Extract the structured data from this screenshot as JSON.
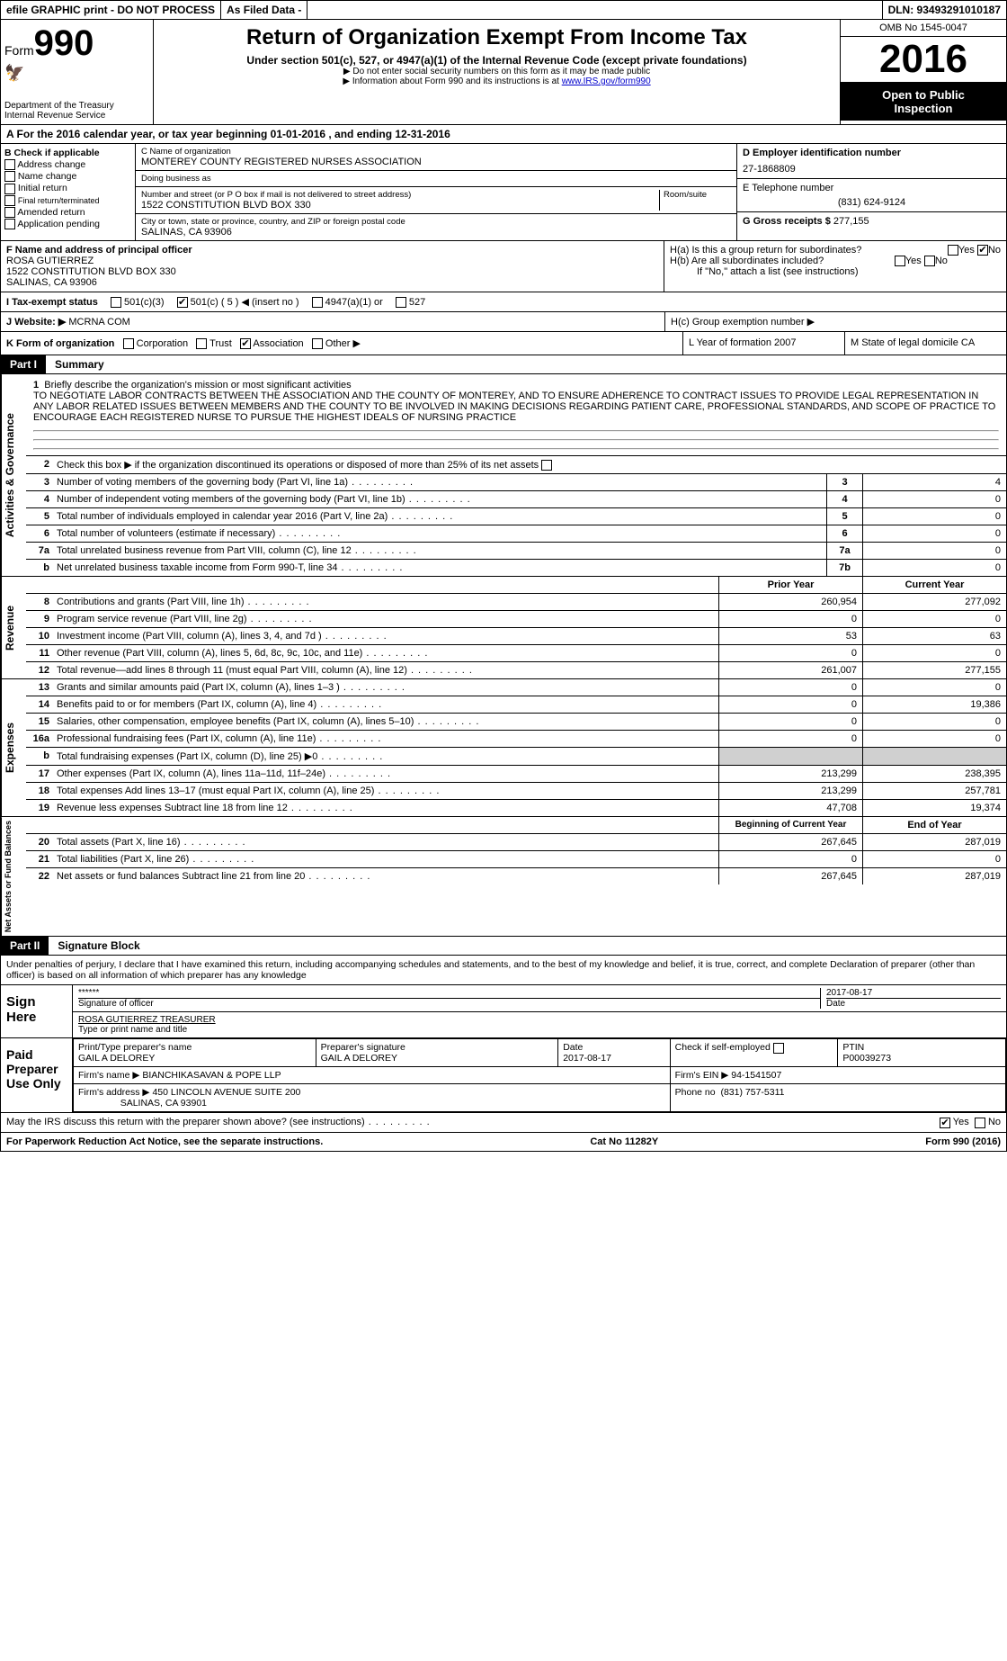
{
  "topbar": {
    "efile": "efile GRAPHIC print - DO NOT PROCESS",
    "asfiled": "As Filed Data -",
    "dln": "DLN: 93493291010187"
  },
  "header": {
    "form_prefix": "Form",
    "form_num": "990",
    "dept1": "Department of the Treasury",
    "dept2": "Internal Revenue Service",
    "title": "Return of Organization Exempt From Income Tax",
    "subtitle": "Under section 501(c), 527, or 4947(a)(1) of the Internal Revenue Code (except private foundations)",
    "note1": "▶ Do not enter social security numbers on this form as it may be made public",
    "note2_pre": "▶ Information about Form 990 and its instructions is at ",
    "note2_link": "www.IRS.gov/form990",
    "omb": "OMB No 1545-0047",
    "year": "2016",
    "open1": "Open to Public",
    "open2": "Inspection"
  },
  "rowA": "A  For the 2016 calendar year, or tax year beginning 01-01-2016  , and ending 12-31-2016",
  "boxB": {
    "title": "B Check if applicable",
    "opts": [
      "Address change",
      "Name change",
      "Initial return",
      "Final return/terminated",
      "Amended return",
      "Application pending"
    ]
  },
  "boxC": {
    "label_name": "C Name of organization",
    "name": "MONTEREY COUNTY REGISTERED NURSES ASSOCIATION",
    "label_dba": "Doing business as",
    "label_addr": "Number and street (or P O  box if mail is not delivered to street address)",
    "label_room": "Room/suite",
    "addr": "1522 CONSTITUTION BLVD BOX 330",
    "label_city": "City or town, state or province, country, and ZIP or foreign postal code",
    "city": "SALINAS, CA  93906"
  },
  "boxD": {
    "label": "D Employer identification number",
    "value": "27-1868809"
  },
  "boxE": {
    "label": "E Telephone number",
    "value": "(831) 624-9124"
  },
  "boxG": {
    "label": "G Gross receipts $",
    "value": "277,155"
  },
  "boxF": {
    "label": "F  Name and address of principal officer",
    "name": "ROSA GUTIERREZ",
    "addr1": "1522 CONSTITUTION BLVD BOX 330",
    "addr2": "SALINAS, CA  93906"
  },
  "boxH": {
    "a": "H(a)  Is this a group return for subordinates?",
    "b": "H(b)  Are all subordinates included?",
    "b_note": "If \"No,\" attach a list  (see instructions)",
    "c": "H(c)  Group exemption number ▶",
    "yes": "Yes",
    "no": "No"
  },
  "rowI": {
    "label": "I  Tax-exempt status",
    "opt1": "501(c)(3)",
    "opt2": "501(c) ( 5 ) ◀ (insert no )",
    "opt3": "4947(a)(1) or",
    "opt4": "527"
  },
  "rowJ": {
    "label": "J  Website: ▶",
    "value": "MCRNA COM"
  },
  "rowK": {
    "label": "K Form of organization",
    "opts": [
      "Corporation",
      "Trust",
      "Association",
      "Other ▶"
    ],
    "L": "L Year of formation  2007",
    "M": "M State of legal domicile  CA"
  },
  "part1": {
    "label": "Part I",
    "title": "Summary"
  },
  "mission": {
    "num": "1",
    "label": "Briefly describe the organization's mission or most significant activities",
    "text": "TO NEGOTIATE LABOR CONTRACTS BETWEEN THE ASSOCIATION AND THE COUNTY OF MONTEREY, AND TO ENSURE ADHERENCE TO CONTRACT ISSUES  TO PROVIDE LEGAL REPRESENTATION IN ANY LABOR RELATED ISSUES BETWEEN MEMBERS AND THE COUNTY  TO BE INVOLVED IN MAKING DECISIONS REGARDING PATIENT CARE, PROFESSIONAL STANDARDS, AND SCOPE OF PRACTICE  TO ENCOURAGE EACH REGISTERED NURSE TO PURSUE THE HIGHEST IDEALS OF NURSING PRACTICE"
  },
  "activities": {
    "tab": "Activities & Governance",
    "line2": "Check this box ▶      if the organization discontinued its operations or disposed of more than 25% of its net assets",
    "rows": [
      {
        "n": "3",
        "t": "Number of voting members of the governing body (Part VI, line 1a)",
        "k": "3",
        "v": "4"
      },
      {
        "n": "4",
        "t": "Number of independent voting members of the governing body (Part VI, line 1b)",
        "k": "4",
        "v": "0"
      },
      {
        "n": "5",
        "t": "Total number of individuals employed in calendar year 2016 (Part V, line 2a)",
        "k": "5",
        "v": "0"
      },
      {
        "n": "6",
        "t": "Total number of volunteers (estimate if necessary)",
        "k": "6",
        "v": "0"
      },
      {
        "n": "7a",
        "t": "Total unrelated business revenue from Part VIII, column (C), line 12",
        "k": "7a",
        "v": "0"
      },
      {
        "n": "b",
        "t": "Net unrelated business taxable income from Form 990-T, line 34",
        "k": "7b",
        "v": "0"
      }
    ]
  },
  "revenue": {
    "tab": "Revenue",
    "hdr_prior": "Prior Year",
    "hdr_curr": "Current Year",
    "rows": [
      {
        "n": "8",
        "t": "Contributions and grants (Part VIII, line 1h)",
        "p": "260,954",
        "c": "277,092"
      },
      {
        "n": "9",
        "t": "Program service revenue (Part VIII, line 2g)",
        "p": "0",
        "c": "0"
      },
      {
        "n": "10",
        "t": "Investment income (Part VIII, column (A), lines 3, 4, and 7d )",
        "p": "53",
        "c": "63"
      },
      {
        "n": "11",
        "t": "Other revenue (Part VIII, column (A), lines 5, 6d, 8c, 9c, 10c, and 11e)",
        "p": "0",
        "c": "0"
      },
      {
        "n": "12",
        "t": "Total revenue—add lines 8 through 11 (must equal Part VIII, column (A), line 12)",
        "p": "261,007",
        "c": "277,155"
      }
    ]
  },
  "expenses": {
    "tab": "Expenses",
    "rows": [
      {
        "n": "13",
        "t": "Grants and similar amounts paid (Part IX, column (A), lines 1–3 )",
        "p": "0",
        "c": "0"
      },
      {
        "n": "14",
        "t": "Benefits paid to or for members (Part IX, column (A), line 4)",
        "p": "0",
        "c": "19,386"
      },
      {
        "n": "15",
        "t": "Salaries, other compensation, employee benefits (Part IX, column (A), lines 5–10)",
        "p": "0",
        "c": "0"
      },
      {
        "n": "16a",
        "t": "Professional fundraising fees (Part IX, column (A), line 11e)",
        "p": "0",
        "c": "0"
      },
      {
        "n": "b",
        "t": "Total fundraising expenses (Part IX, column (D), line 25) ▶0",
        "p": "",
        "c": "",
        "grey": true
      },
      {
        "n": "17",
        "t": "Other expenses (Part IX, column (A), lines 11a–11d, 11f–24e)",
        "p": "213,299",
        "c": "238,395"
      },
      {
        "n": "18",
        "t": "Total expenses  Add lines 13–17 (must equal Part IX, column (A), line 25)",
        "p": "213,299",
        "c": "257,781"
      },
      {
        "n": "19",
        "t": "Revenue less expenses  Subtract line 18 from line 12",
        "p": "47,708",
        "c": "19,374"
      }
    ]
  },
  "netassets": {
    "tab": "Net Assets or Fund Balances",
    "hdr_begin": "Beginning of Current Year",
    "hdr_end": "End of Year",
    "rows": [
      {
        "n": "20",
        "t": "Total assets (Part X, line 16)",
        "p": "267,645",
        "c": "287,019"
      },
      {
        "n": "21",
        "t": "Total liabilities (Part X, line 26)",
        "p": "0",
        "c": "0"
      },
      {
        "n": "22",
        "t": "Net assets or fund balances  Subtract line 21 from line 20",
        "p": "267,645",
        "c": "287,019"
      }
    ]
  },
  "part2": {
    "label": "Part II",
    "title": "Signature Block"
  },
  "perjury": "Under penalties of perjury, I declare that I have examined this return, including accompanying schedules and statements, and to the best of my knowledge and belief, it is true, correct, and complete  Declaration of preparer (other than officer) is based on all information of which preparer has any knowledge",
  "sign": {
    "label": "Sign Here",
    "stars": "******",
    "sig_label": "Signature of officer",
    "date": "2017-08-17",
    "date_label": "Date",
    "name": "ROSA GUTIERREZ  TREASURER",
    "name_label": "Type or print name and title"
  },
  "preparer": {
    "label": "Paid Preparer Use Only",
    "h_print": "Print/Type preparer's name",
    "h_sig": "Preparer's signature",
    "h_date": "Date",
    "h_check": "Check      if self-employed",
    "h_ptin": "PTIN",
    "name": "GAIL A DELOREY",
    "sig": "GAIL A DELOREY",
    "date": "2017-08-17",
    "ptin": "P00039273",
    "firm_label": "Firm's name    ▶",
    "firm": "BIANCHIKASAVAN & POPE LLP",
    "ein_label": "Firm's EIN ▶",
    "ein": "94-1541507",
    "addr_label": "Firm's address ▶",
    "addr1": "450 LINCOLN AVENUE SUITE 200",
    "addr2": "SALINAS, CA  93901",
    "phone_label": "Phone no",
    "phone": "(831) 757-5311"
  },
  "discuss": {
    "text": "May the IRS discuss this return with the preparer shown above? (see instructions)",
    "yes": "Yes",
    "no": "No"
  },
  "footer": {
    "left": "For Paperwork Reduction Act Notice, see the separate instructions.",
    "mid": "Cat No  11282Y",
    "right": "Form 990 (2016)"
  }
}
